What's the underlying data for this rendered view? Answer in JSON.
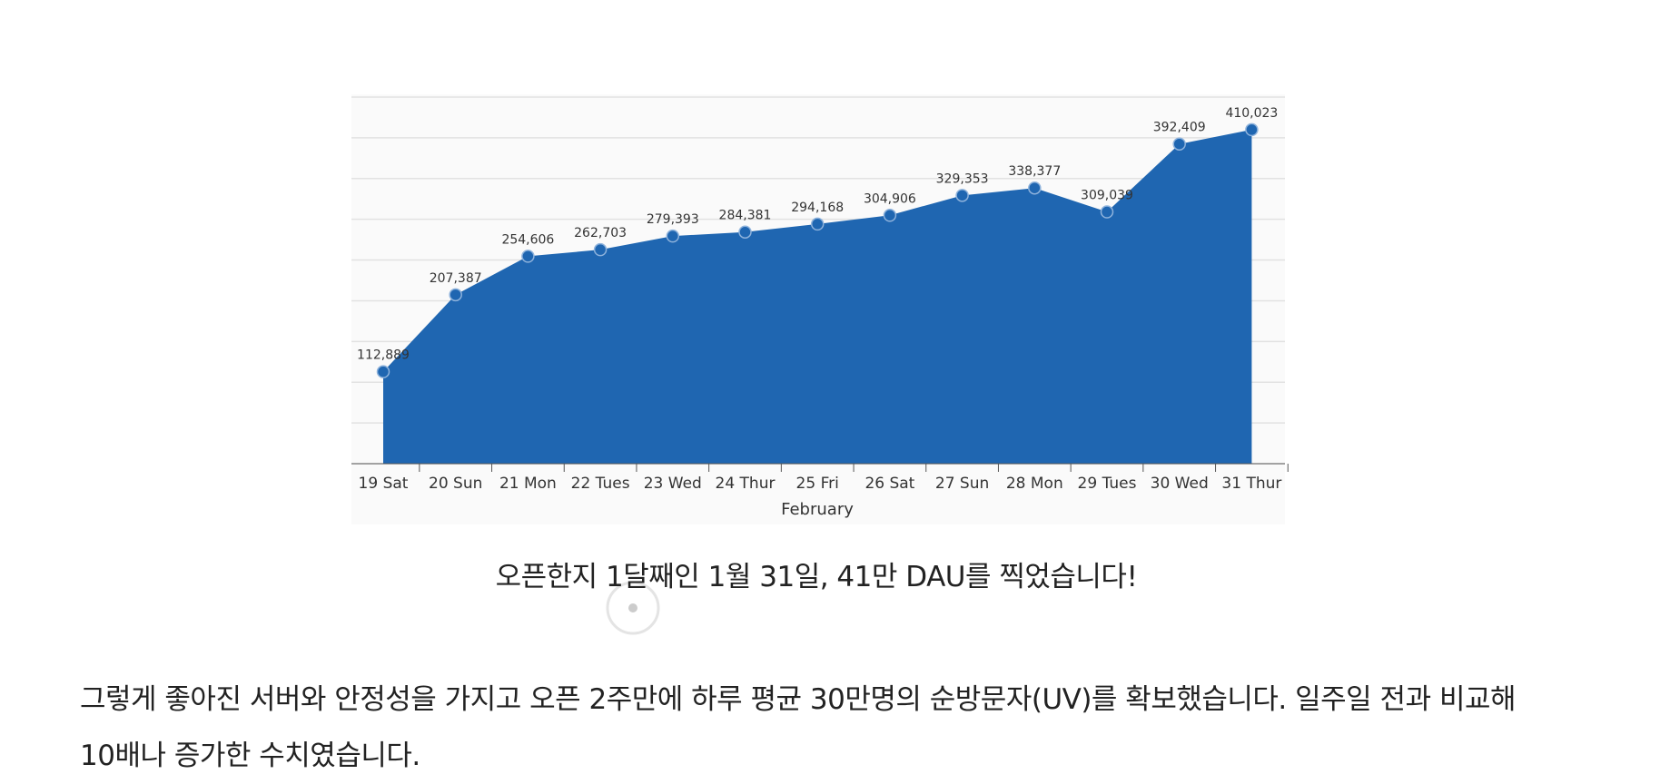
{
  "chart_data": {
    "type": "area",
    "xlabel": "February",
    "categories": [
      "19 Sat",
      "20 Sun",
      "21 Mon",
      "22 Tues",
      "23 Wed",
      "24 Thur",
      "25 Fri",
      "26 Sat",
      "27 Sun",
      "28 Mon",
      "29 Tues",
      "30 Wed",
      "31 Thur"
    ],
    "values": [
      112889,
      207387,
      254606,
      262703,
      279393,
      284381,
      294168,
      304906,
      329353,
      338377,
      309039,
      392409,
      410023
    ],
    "value_labels": [
      "112,889",
      "207,387",
      "254,606",
      "262,703",
      "279,393",
      "284,381",
      "294,168",
      "304,906",
      "329,353",
      "338,377",
      "309,039",
      "392,409",
      "410,023"
    ],
    "color": "#1f66b1",
    "ylim": [
      0,
      450000
    ],
    "yticks": [
      0,
      50000,
      100000,
      150000,
      200000,
      250000,
      300000,
      350000,
      400000,
      450000
    ],
    "grid": true
  },
  "caption": "오픈한지 1달째인 1월 31일, 41만 DAU를 찍었습니다!",
  "paragraph": "그렇게 좋아진 서버와 안정성을 가지고 오픈 2주만에 하루 평균 30만명의 순방문자(UV)를 확보했습니다. 일주일 전과 비교해 10배나 증가한 수치였습니다."
}
